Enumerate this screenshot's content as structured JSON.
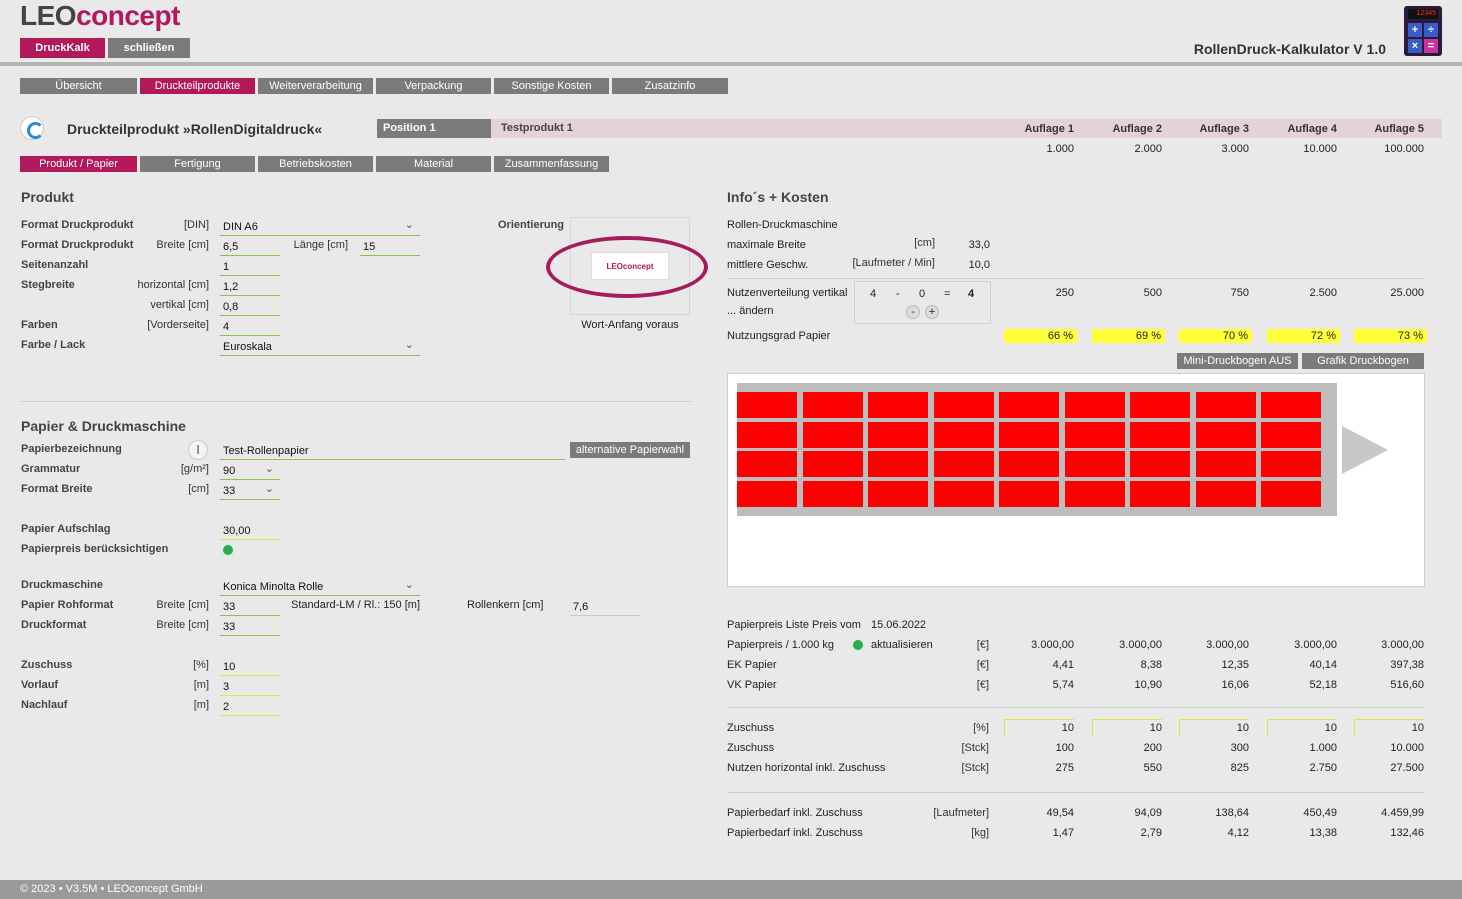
{
  "app": {
    "logo_left": "LEO",
    "logo_right": "concept",
    "title": "RollenDruck-Kalkulator V 1.0",
    "btn_druckkalk": "DruckKalk",
    "btn_schliessen": "schließen",
    "calc_screen": "12345",
    "calc_keys": [
      "+",
      "÷",
      "×",
      "="
    ],
    "accent": "#b2185a"
  },
  "main_tabs": [
    "Übersicht",
    "Druckteilprodukte",
    "Weiterverarbeitung",
    "Verpackung",
    "Sonstige Kosten",
    "Zusatzinfo"
  ],
  "header": {
    "title": "Druckteilprodukt »RollenDigitaldruck«",
    "position": "Position 1",
    "product": "Testprodukt 1",
    "auflagen": [
      {
        "label": "Auflage 1",
        "value": "1.000"
      },
      {
        "label": "Auflage 2",
        "value": "2.000"
      },
      {
        "label": "Auflage 3",
        "value": "3.000"
      },
      {
        "label": "Auflage 4",
        "value": "10.000"
      },
      {
        "label": "Auflage 5",
        "value": "100.000"
      }
    ]
  },
  "sub_tabs": [
    "Produkt / Papier",
    "Fertigung",
    "Betriebskosten",
    "Material",
    "Zusammenfassung"
  ],
  "produkt": {
    "title": "Produkt",
    "format_label": "Format Druckprodukt",
    "format_unit": "[DIN]",
    "format_value": "DIN A6",
    "format2_label": "Format Druckprodukt",
    "breite_unit": "Breite [cm]",
    "breite_value": "6,5",
    "laenge_unit": "Länge [cm]",
    "laenge_value": "15",
    "seiten_label": "Seitenanzahl",
    "seiten_value": "1",
    "steg_label": "Stegbreite",
    "steg_h_unit": "horizontal [cm]",
    "steg_h_value": "1,2",
    "steg_v_unit": "vertikal [cm]",
    "steg_v_value": "0,8",
    "farben_label": "Farben",
    "farben_unit": "[Vorderseite]",
    "farben_value": "4",
    "lack_label": "Farbe / Lack",
    "lack_value": "Euroskala",
    "orient_label": "Orientierung",
    "orient_caption": "Wort-Anfang voraus",
    "orient_logo": "LEOconcept"
  },
  "papier": {
    "title": "Papier & Druckmaschine",
    "bez_label": "Papierbezeichnung",
    "bez_value": "Test-Rollenpapier",
    "alt_button": "alternative Papierwahl",
    "gram_label": "Grammatur",
    "gram_unit": "[g/m²]",
    "gram_value": "90",
    "fbreite_label": "Format Breite",
    "fbreite_unit": "[cm]",
    "fbreite_value": "33",
    "aufschlag_label": "Papier Aufschlag",
    "aufschlag_value": "30,00",
    "preis_label": "Papierpreis berücksichtigen",
    "dm_label": "Druckmaschine",
    "dm_value": "Konica Minolta Rolle",
    "roh_label": "Papier Rohformat",
    "roh_unit": "Breite [cm]",
    "roh_value": "33",
    "std_label": "Standard-LM / Rl.: 150 [m]",
    "kern_label": "Rollenkern [cm]",
    "kern_value": "7,6",
    "df_label": "Druckformat",
    "df_unit": "Breite [cm]",
    "df_value": "33",
    "zuschuss_label": "Zuschuss",
    "zuschuss_unit": "[%]",
    "zuschuss_value": "10",
    "vorlauf_label": "Vorlauf",
    "vorlauf_unit": "[m]",
    "vorlauf_value": "3",
    "nachlauf_label": "Nachlauf",
    "nachlauf_unit": "[m]",
    "nachlauf_value": "2"
  },
  "info": {
    "title": "Info´s + Kosten",
    "maschine": "Rollen-Druckmaschine",
    "maxb_label": "maximale Breite",
    "maxb_unit": "[cm]",
    "maxb_value": "33,0",
    "gesch_label": "mittlere Geschw.",
    "gesch_unit": "[Laufmeter / Min]",
    "gesch_value": "10,0",
    "nv_label": "Nutzenverteilung vertikal",
    "nv_label2": "... ändern",
    "nv_a": "4",
    "nv_minus": "-",
    "nv_b": "0",
    "nv_eq": "=",
    "nv_res": "4",
    "nv_btn_minus": "-",
    "nv_btn_plus": "+",
    "nv_values": [
      "250",
      "500",
      "750",
      "2.500",
      "25.000"
    ],
    "ng_label": "Nutzungsgrad Papier",
    "ng_values": [
      "66 %",
      "69 %",
      "70 %",
      "72 %",
      "73 %"
    ],
    "btn_mini": "Mini-Druckbogen AUS",
    "btn_grafik": "Grafik Druckbogen",
    "grid_rows": 4,
    "grid_cols": 9,
    "liste_label": "Papierpreis Liste Preis vom",
    "liste_date": "15.06.2022",
    "pp_label": "Papierpreis / 1.000 kg",
    "pp_update": "aktualisieren",
    "pp_unit": "[€]",
    "pp_values": [
      "3.000,00",
      "3.000,00",
      "3.000,00",
      "3.000,00",
      "3.000,00"
    ],
    "ek_label": "EK Papier",
    "ek_unit": "[€]",
    "ek_values": [
      "4,41",
      "8,38",
      "12,35",
      "40,14",
      "397,38"
    ],
    "vk_label": "VK Papier",
    "vk_unit": "[€]",
    "vk_values": [
      "5,74",
      "10,90",
      "16,06",
      "52,18",
      "516,60"
    ],
    "zp_label": "Zuschuss",
    "zp_unit": "[%]",
    "zp_values": [
      "10",
      "10",
      "10",
      "10",
      "10"
    ],
    "zs_label": "Zuschuss",
    "zs_unit": "[Stck]",
    "zs_values": [
      "100",
      "200",
      "300",
      "1.000",
      "10.000"
    ],
    "nh_label": "Nutzen horizontal inkl. Zuschuss",
    "nh_unit": "[Stck]",
    "nh_values": [
      "275",
      "550",
      "825",
      "2.750",
      "27.500"
    ],
    "pl_label": "Papierbedarf inkl. Zuschuss",
    "pl_unit": "[Laufmeter]",
    "pl_values": [
      "49,54",
      "94,09",
      "138,64",
      "450,49",
      "4.459,99"
    ],
    "pk_label": "Papierbedarf inkl. Zuschuss",
    "pk_unit": "[kg]",
    "pk_values": [
      "1,47",
      "2,79",
      "4,12",
      "13,38",
      "132,46"
    ]
  },
  "footer": "© 2023 • V3.5M • LEOconcept GmbH"
}
